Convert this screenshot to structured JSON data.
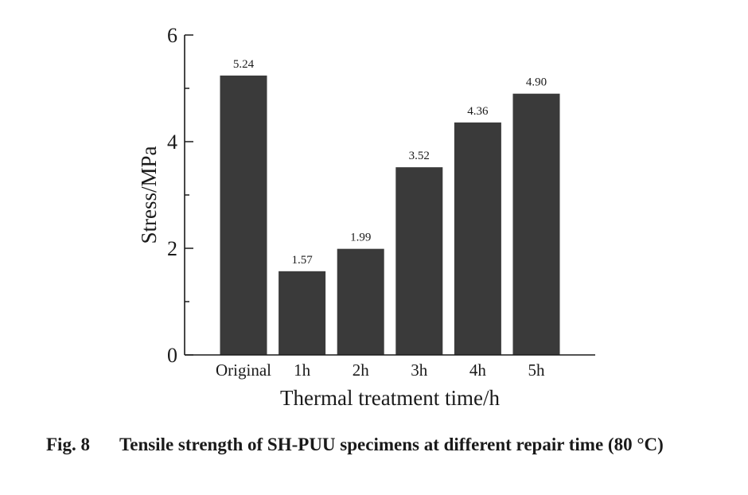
{
  "chart_data": {
    "type": "bar",
    "categories": [
      "Original",
      "1h",
      "2h",
      "3h",
      "4h",
      "5h"
    ],
    "values": [
      5.24,
      1.57,
      1.99,
      3.52,
      4.36,
      4.9
    ],
    "data_labels": [
      "5.24",
      "1.57",
      "1.99",
      "3.52",
      "4.36",
      "4.90"
    ],
    "ylim": [
      0,
      6
    ],
    "yticks": [
      0,
      2,
      4,
      6
    ],
    "yticks_minor_step": 1,
    "xlabel": "Thermal treatment time/h",
    "ylabel": "Stress/MPa",
    "colors": {
      "bar": "#3a3a3a",
      "axis": "#1a1a1a"
    }
  },
  "caption": {
    "number": "Fig. 8",
    "text": "Tensile strength of SH-PUU specimens at different repair time (80 °C)"
  }
}
